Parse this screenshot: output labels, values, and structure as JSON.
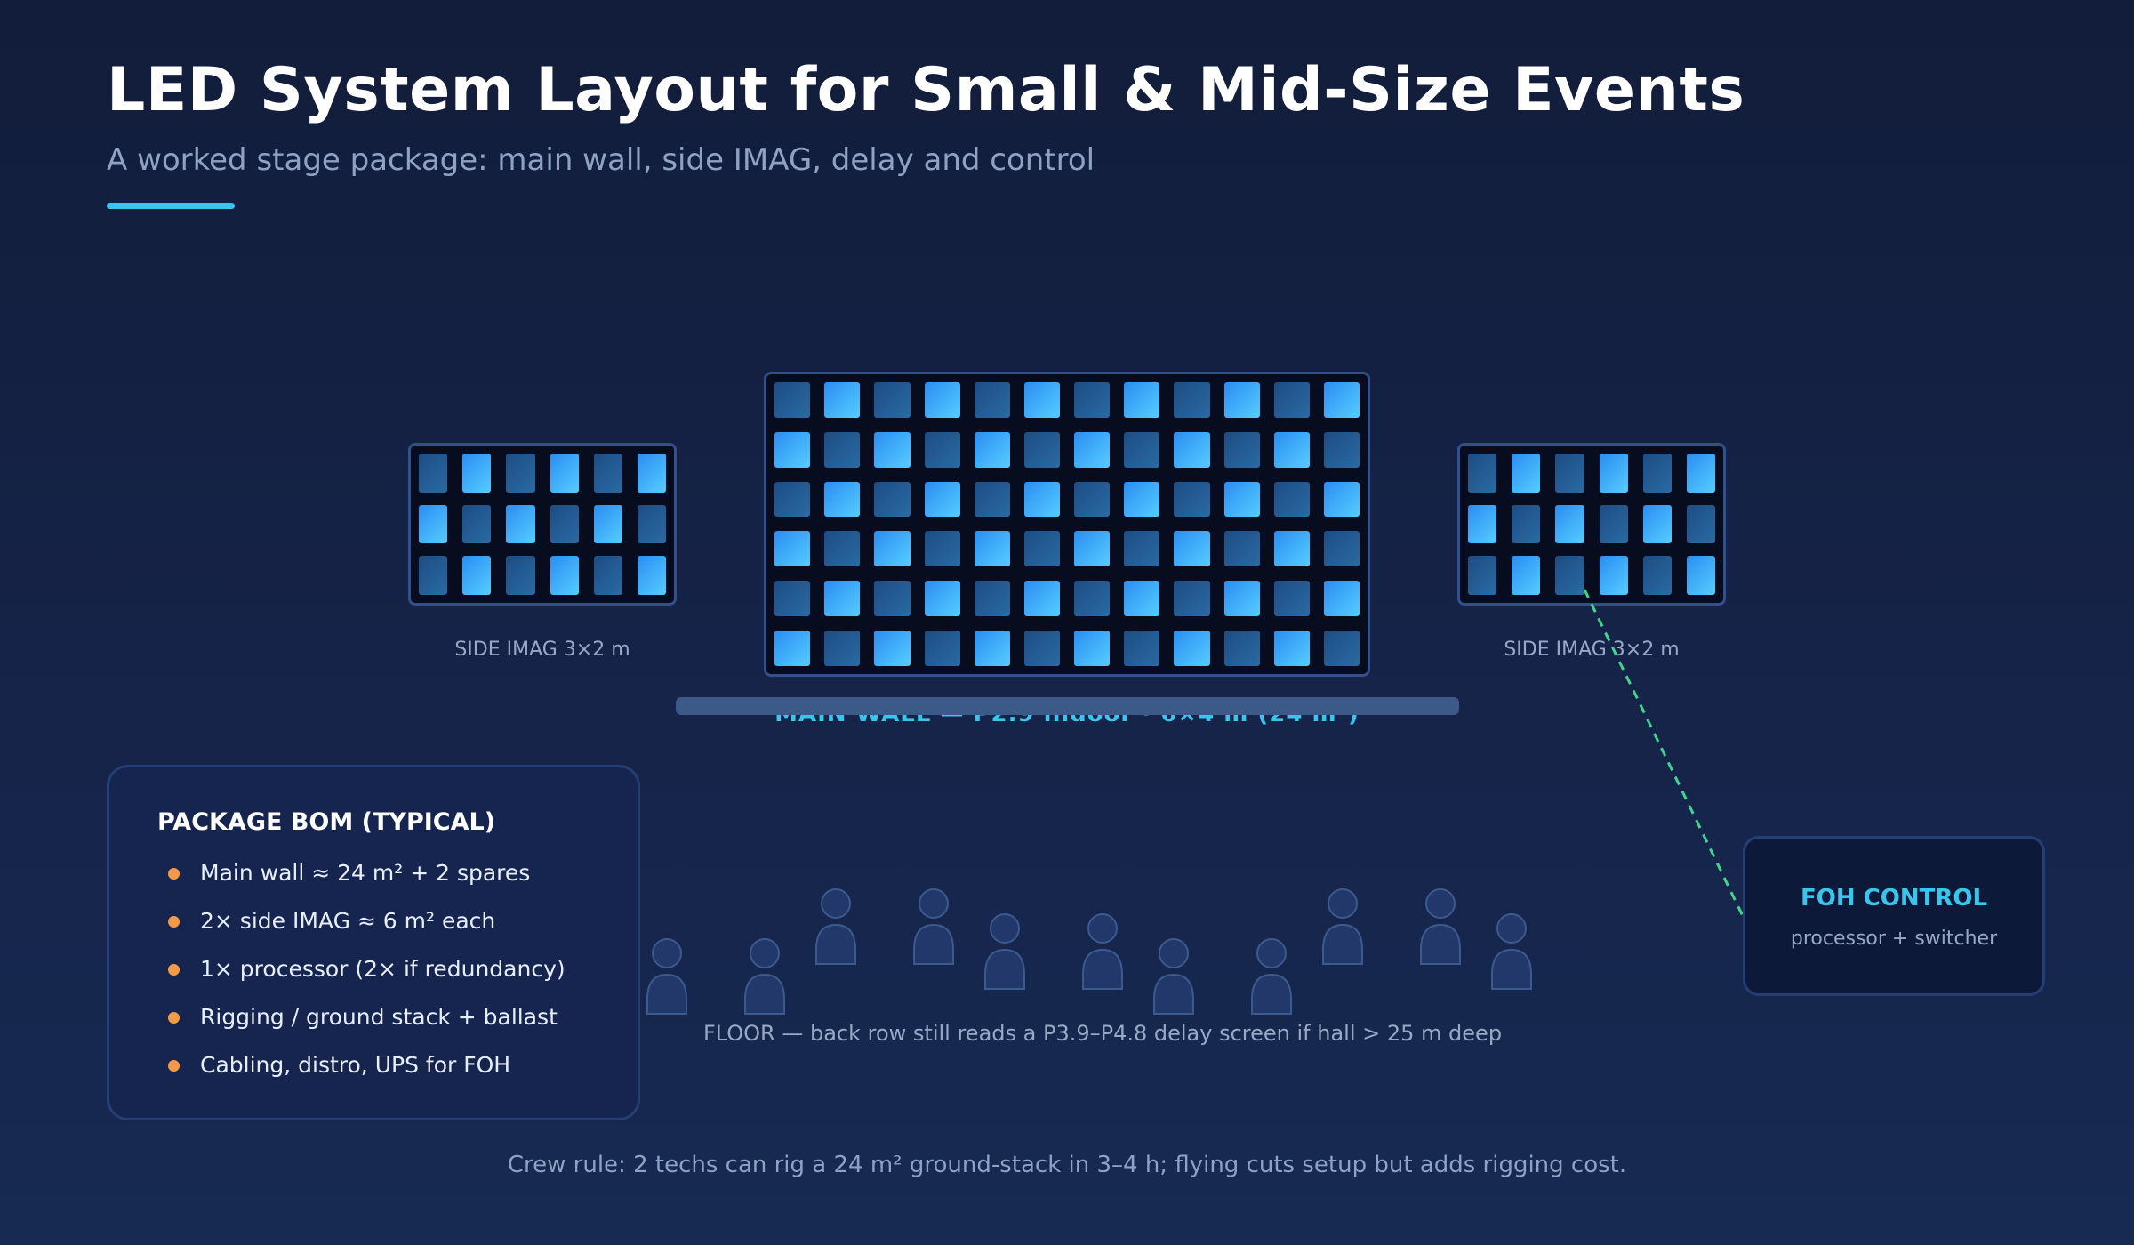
{
  "header": {
    "title": "LED System Layout for Small & Mid-Size Events",
    "subtitle": "A worked stage package: main wall, side IMAG, delay and control"
  },
  "screens": {
    "side_left_label": "SIDE IMAG 3×2 m",
    "side_right_label": "SIDE IMAG 3×2 m",
    "main_label": "MAIN WALL — P2.9 indoor · 6×4 m (24 m²)"
  },
  "bom": {
    "title": "PACKAGE BOM (TYPICAL)",
    "items": [
      "Main wall ≈ 24 m² + 2 spares",
      "2× side IMAG ≈ 6 m² each",
      "1× processor (2× if redundancy)",
      "Rigging / ground stack + ballast",
      "Cabling, distro, UPS for FOH"
    ]
  },
  "foh": {
    "title": "FOH CONTROL",
    "subtitle": "processor + switcher"
  },
  "floor": {
    "label": "FLOOR — back row still reads a P3.9–P4.8 delay screen if hall > 25 m deep"
  },
  "footer": {
    "crew_rule": "Crew rule: 2 techs can rig a 24 m² ground-stack in 3–4 h; flying cuts setup but adds rigging cost."
  },
  "colors": {
    "background": "#111d3a",
    "accent": "#38c6ee",
    "bullet": "#f29a4a",
    "signal_line": "#3ed68a",
    "audience": "#3b5a8e"
  }
}
